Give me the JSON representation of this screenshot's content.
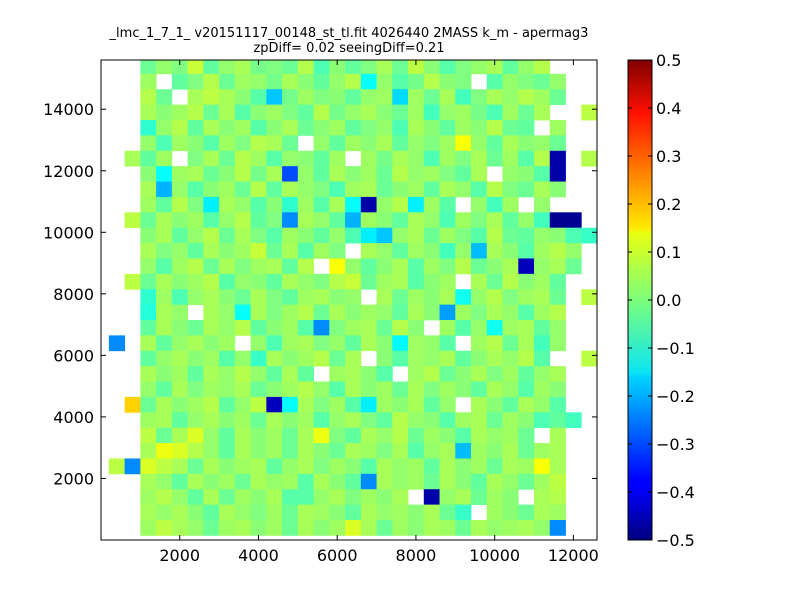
{
  "chart_data": {
    "type": "heatmap",
    "title": "_lmc_1_7_1_ v20151117_00148_st_tl.fit 4026440 2MASS k_m - apermag3",
    "subtitle": "zpDiff= 0.02 seeingDiff=0.21",
    "xlabel": "",
    "ylabel": "",
    "xlim": [
      0,
      12600
    ],
    "ylim": [
      0,
      15600
    ],
    "x_ticks": [
      2000,
      4000,
      6000,
      8000,
      10000,
      12000
    ],
    "y_ticks": [
      2000,
      4000,
      6000,
      8000,
      10000,
      12000,
      14000
    ],
    "x_tick_labels": [
      "2000",
      "4000",
      "6000",
      "8000",
      "10000",
      "12000"
    ],
    "y_tick_labels": [
      "2000",
      "4000",
      "6000",
      "8000",
      "10000",
      "12000",
      "14000"
    ],
    "colormap": "jet",
    "color_range": [
      -0.5,
      0.5
    ],
    "colorbar_ticks": [
      0.5,
      0.4,
      0.3,
      0.2,
      0.1,
      0.0,
      -0.1,
      -0.2,
      -0.3,
      -0.4,
      -0.5
    ],
    "colorbar_tick_labels": [
      "0.5",
      "0.4",
      "0.3",
      "0.2",
      "0.1",
      "0.0",
      "−0.1",
      "−0.2",
      "−0.3",
      "−0.4",
      "−0.5"
    ],
    "grid": false,
    "x_cell_centers": [
      400,
      800,
      1200,
      1600,
      2000,
      2400,
      2800,
      3200,
      3600,
      4000,
      4400,
      4800,
      5200,
      5600,
      6000,
      6400,
      6800,
      7200,
      7600,
      8000,
      8400,
      8800,
      9200,
      9600,
      10000,
      10400,
      10800,
      11200,
      11600,
      12000,
      12400
    ],
    "y_cell_centers": [
      15400,
      14900,
      14400,
      13900,
      13400,
      12900,
      12400,
      11900,
      11400,
      10900,
      10400,
      9900,
      9400,
      8900,
      8400,
      7900,
      7400,
      6900,
      6400,
      5900,
      5400,
      4900,
      4400,
      3900,
      3400,
      2900,
      2400,
      1900,
      1400,
      900,
      400
    ],
    "values": [
      [
        null,
        null,
        -0.02,
        0.02,
        0.0,
        0.07,
        -0.03,
        0.02,
        0.04,
        -0.01,
        0.0,
        -0.02,
        0.05,
        -0.05,
        0.01,
        -0.03,
        0.0,
        0.04,
        -0.02,
        0.06,
        0.01,
        -0.04,
        0.0,
        0.02,
        0.04,
        -0.03,
        0.02,
        0.05,
        null,
        null,
        null
      ],
      [
        null,
        null,
        0.03,
        null,
        -0.03,
        0.0,
        0.05,
        -0.02,
        0.03,
        0.02,
        -0.01,
        0.04,
        0.01,
        -0.03,
        0.02,
        0.05,
        -0.12,
        0.02,
        -0.04,
        -0.01,
        0.05,
        0.01,
        0.0,
        null,
        -0.04,
        0.02,
        0.0,
        -0.02,
        0.02,
        null,
        null
      ],
      [
        null,
        null,
        0.05,
        -0.02,
        null,
        0.04,
        0.06,
        0.04,
        0.01,
        -0.04,
        -0.18,
        -0.01,
        0.03,
        0.0,
        0.01,
        -0.03,
        0.02,
        0.03,
        -0.16,
        0.03,
        -0.02,
        0.04,
        -0.06,
        0.0,
        0.04,
        0.02,
        0.05,
        0.03,
        -0.02,
        null,
        null
      ],
      [
        null,
        null,
        0.04,
        0.01,
        0.03,
        0.05,
        -0.02,
        0.04,
        -0.04,
        0.01,
        0.03,
        0.0,
        -0.03,
        0.05,
        -0.01,
        0.02,
        0.04,
        0.01,
        -0.02,
        0.03,
        -0.06,
        0.02,
        0.03,
        -0.01,
        -0.05,
        0.03,
        -0.02,
        0.04,
        null,
        null,
        0.06
      ],
      [
        null,
        null,
        -0.08,
        0.02,
        0.05,
        -0.03,
        0.04,
        0.01,
        0.03,
        -0.04,
        0.01,
        0.04,
        -0.02,
        0.01,
        0.03,
        -0.03,
        0.0,
        0.02,
        -0.05,
        0.04,
        0.01,
        -0.03,
        0.03,
        0.01,
        0.05,
        -0.02,
        -0.03,
        null,
        0.03,
        null,
        null
      ],
      [
        null,
        null,
        0.02,
        -0.05,
        0.03,
        0.01,
        -0.04,
        0.03,
        0.0,
        0.05,
        0.04,
        -0.02,
        null,
        0.02,
        -0.03,
        0.03,
        0.01,
        0.04,
        -0.03,
        0.02,
        0.0,
        0.03,
        0.12,
        0.02,
        -0.03,
        0.04,
        0.01,
        0.02,
        -0.02,
        null,
        null
      ],
      [
        null,
        0.04,
        -0.03,
        0.03,
        null,
        0.0,
        0.04,
        -0.02,
        0.05,
        0.03,
        -0.04,
        0.02,
        0.01,
        -0.03,
        0.03,
        null,
        0.03,
        -0.01,
        0.04,
        0.02,
        -0.05,
        0.03,
        0.0,
        0.04,
        -0.02,
        0.03,
        -0.04,
        0.05,
        -0.46,
        null,
        0.05
      ],
      [
        null,
        null,
        0.01,
        -0.12,
        0.03,
        0.04,
        -0.02,
        0.01,
        0.05,
        -0.01,
        0.04,
        -0.3,
        0.02,
        -0.03,
        0.04,
        0.01,
        0.03,
        -0.02,
        0.05,
        0.02,
        0.03,
        0.0,
        -0.03,
        0.04,
        null,
        0.02,
        0.01,
        -0.04,
        -0.46,
        null,
        null
      ],
      [
        null,
        null,
        0.04,
        -0.2,
        0.02,
        -0.04,
        0.01,
        0.03,
        -0.02,
        0.05,
        -0.03,
        0.04,
        0.02,
        0.0,
        -0.05,
        0.03,
        0.04,
        -0.02,
        0.01,
        0.03,
        -0.03,
        0.04,
        0.02,
        -0.04,
        0.05,
        0.0,
        -0.02,
        0.04,
        0.01,
        null,
        null
      ],
      [
        null,
        null,
        0.03,
        -0.03,
        0.05,
        0.0,
        -0.14,
        0.04,
        0.02,
        -0.04,
        0.01,
        -0.08,
        0.03,
        -0.04,
        0.04,
        -0.12,
        -0.46,
        0.02,
        0.05,
        -0.14,
        0.03,
        -0.04,
        null,
        0.02,
        -0.06,
        0.03,
        null,
        0.02,
        null,
        null,
        null
      ],
      [
        null,
        0.06,
        -0.02,
        0.04,
        0.01,
        0.03,
        -0.04,
        0.02,
        0.05,
        -0.03,
        0.0,
        -0.24,
        0.04,
        0.02,
        -0.03,
        -0.2,
        0.03,
        0.01,
        -0.03,
        0.04,
        0.02,
        -0.05,
        0.03,
        0.0,
        0.04,
        -0.03,
        0.02,
        -0.06,
        -0.48,
        -0.48,
        null
      ],
      [
        null,
        null,
        0.01,
        0.04,
        -0.03,
        0.02,
        0.05,
        -0.02,
        0.04,
        0.0,
        -0.04,
        0.03,
        0.01,
        -0.03,
        0.02,
        -0.05,
        -0.14,
        -0.18,
        0.02,
        0.04,
        -0.02,
        0.03,
        0.0,
        -0.04,
        0.05,
        -0.02,
        -0.03,
        0.02,
        0.01,
        -0.05,
        -0.07
      ],
      [
        null,
        null,
        0.04,
        0.0,
        0.02,
        -0.03,
        0.04,
        0.01,
        0.03,
        0.07,
        -0.02,
        0.04,
        -0.04,
        0.03,
        0.0,
        null,
        0.04,
        0.02,
        -0.03,
        0.03,
        0.01,
        -0.06,
        0.02,
        -0.19,
        0.04,
        0.01,
        -0.04,
        0.03,
        0.05,
        0.02,
        null
      ],
      [
        null,
        null,
        0.02,
        -0.04,
        0.03,
        0.05,
        -0.02,
        0.04,
        0.0,
        0.03,
        0.04,
        -0.03,
        0.05,
        null,
        0.12,
        0.02,
        -0.03,
        0.01,
        0.04,
        -0.04,
        0.03,
        0.0,
        0.05,
        -0.02,
        0.01,
        0.04,
        -0.44,
        0.02,
        0.04,
        -0.02,
        null
      ],
      [
        null,
        0.06,
        -0.02,
        0.04,
        0.01,
        0.03,
        0.05,
        -0.04,
        0.02,
        0.01,
        -0.03,
        0.04,
        0.02,
        0.0,
        0.05,
        0.07,
        -0.02,
        0.03,
        0.04,
        -0.04,
        0.01,
        0.03,
        null,
        0.04,
        -0.02,
        0.05,
        0.01,
        0.03,
        -0.03,
        null,
        null
      ],
      [
        null,
        null,
        -0.08,
        0.03,
        -0.05,
        0.02,
        0.04,
        0.01,
        -0.02,
        0.04,
        0.0,
        -0.03,
        0.03,
        0.04,
        0.01,
        0.02,
        null,
        0.04,
        -0.02,
        0.03,
        0.01,
        0.04,
        -0.11,
        0.02,
        0.05,
        0.0,
        0.03,
        0.04,
        -0.02,
        null,
        0.06
      ],
      [
        null,
        null,
        -0.09,
        0.04,
        0.02,
        null,
        0.04,
        0.02,
        -0.12,
        0.04,
        0.0,
        0.03,
        0.05,
        -0.02,
        0.04,
        0.01,
        0.03,
        0.02,
        -0.03,
        0.04,
        0.01,
        -0.22,
        0.03,
        0.0,
        0.04,
        0.02,
        -0.04,
        0.03,
        0.05,
        null,
        null
      ],
      [
        null,
        null,
        -0.03,
        0.04,
        0.01,
        -0.02,
        0.04,
        0.02,
        0.05,
        -0.03,
        0.01,
        0.03,
        -0.04,
        -0.24,
        0.0,
        0.03,
        0.04,
        -0.02,
        0.05,
        0.01,
        null,
        0.03,
        -0.04,
        0.02,
        -0.11,
        0.03,
        0.04,
        -0.03,
        0.02,
        null,
        null
      ],
      [
        -0.24,
        null,
        0.04,
        -0.03,
        0.02,
        0.04,
        0.01,
        0.03,
        null,
        0.02,
        -0.05,
        0.03,
        0.04,
        0.0,
        0.02,
        -0.03,
        0.04,
        0.01,
        -0.13,
        0.03,
        0.02,
        -0.04,
        null,
        0.03,
        0.05,
        -0.02,
        0.04,
        -0.06,
        0.02,
        null,
        null
      ],
      [
        null,
        null,
        -0.03,
        0.02,
        0.04,
        0.01,
        0.03,
        -0.04,
        0.02,
        -0.07,
        0.04,
        0.01,
        0.03,
        0.05,
        -0.02,
        0.04,
        null,
        0.01,
        -0.04,
        0.03,
        0.02,
        0.04,
        -0.03,
        0.01,
        0.04,
        0.02,
        0.05,
        -0.04,
        null,
        null,
        0.06
      ],
      [
        null,
        null,
        0.04,
        0.01,
        0.03,
        -0.03,
        0.04,
        0.02,
        0.05,
        0.02,
        -0.03,
        0.04,
        -0.03,
        null,
        0.03,
        0.04,
        0.01,
        -0.04,
        null,
        0.03,
        0.05,
        -0.02,
        0.01,
        0.04,
        0.0,
        0.03,
        -0.03,
        0.02,
        0.04,
        null,
        null
      ],
      [
        null,
        null,
        0.02,
        -0.03,
        0.04,
        0.0,
        0.03,
        0.02,
        0.04,
        -0.02,
        0.01,
        0.03,
        0.05,
        0.02,
        -0.04,
        0.04,
        0.01,
        0.03,
        -0.02,
        0.04,
        0.0,
        0.03,
        0.01,
        -0.03,
        0.04,
        0.02,
        -0.04,
        0.03,
        0.01,
        null,
        null
      ],
      [
        null,
        0.17,
        -0.02,
        0.04,
        0.01,
        0.03,
        0.05,
        -0.03,
        0.02,
        0.06,
        -0.44,
        -0.12,
        0.04,
        0.0,
        0.03,
        -0.04,
        -0.14,
        0.03,
        0.01,
        0.04,
        -0.03,
        0.02,
        null,
        0.04,
        0.01,
        -0.03,
        0.04,
        0.02,
        -0.04,
        null,
        null
      ],
      [
        null,
        null,
        0.03,
        0.04,
        -0.03,
        0.02,
        0.04,
        0.01,
        0.03,
        -0.02,
        0.04,
        0.01,
        0.03,
        -0.04,
        0.02,
        0.04,
        0.0,
        -0.03,
        0.05,
        0.02,
        0.01,
        -0.04,
        0.03,
        0.04,
        -0.02,
        0.03,
        0.01,
        -0.05,
        -0.03,
        -0.06,
        null
      ],
      [
        null,
        null,
        0.06,
        -0.02,
        0.04,
        0.09,
        0.02,
        -0.03,
        0.04,
        0.01,
        0.03,
        -0.02,
        0.04,
        0.11,
        0.0,
        -0.03,
        0.04,
        0.02,
        0.05,
        -0.02,
        0.03,
        0.01,
        -0.04,
        0.04,
        0.02,
        0.03,
        -0.02,
        null,
        0.04,
        null,
        null
      ],
      [
        null,
        null,
        0.04,
        0.11,
        0.09,
        0.05,
        0.02,
        -0.03,
        0.04,
        0.01,
        0.03,
        -0.02,
        0.04,
        0.01,
        -0.02,
        0.04,
        0.03,
        0.0,
        0.04,
        -0.04,
        0.02,
        0.04,
        -0.19,
        0.03,
        0.01,
        0.04,
        -0.02,
        0.03,
        0.04,
        null,
        null
      ],
      [
        0.06,
        -0.24,
        0.09,
        0.06,
        0.04,
        -0.02,
        0.04,
        0.01,
        0.03,
        0.04,
        -0.03,
        0.02,
        0.04,
        0.0,
        0.03,
        0.01,
        -0.04,
        0.04,
        0.02,
        0.03,
        -0.03,
        0.04,
        0.01,
        0.03,
        -0.02,
        0.04,
        0.03,
        0.12,
        0.04,
        null,
        null
      ],
      [
        null,
        null,
        0.04,
        0.02,
        -0.03,
        0.04,
        0.01,
        0.03,
        -0.02,
        0.04,
        0.02,
        0.03,
        -0.04,
        0.04,
        0.01,
        -0.03,
        -0.24,
        0.04,
        0.02,
        0.03,
        -0.02,
        0.04,
        0.01,
        -0.03,
        0.04,
        0.02,
        -0.02,
        0.03,
        0.06,
        null,
        null
      ],
      [
        null,
        null,
        0.03,
        0.05,
        0.02,
        -0.03,
        0.04,
        -0.02,
        0.03,
        0.01,
        0.04,
        -0.04,
        -0.04,
        0.02,
        0.04,
        0.0,
        0.03,
        0.01,
        0.04,
        null,
        -0.46,
        0.02,
        0.04,
        -0.02,
        0.03,
        0.01,
        null,
        0.04,
        0.05,
        null,
        null
      ],
      [
        null,
        null,
        0.04,
        0.02,
        0.04,
        0.01,
        -0.03,
        0.04,
        0.02,
        0.0,
        0.03,
        -0.02,
        0.04,
        0.03,
        0.01,
        -0.03,
        0.04,
        0.02,
        0.03,
        0.01,
        0.04,
        -0.02,
        -0.07,
        null,
        0.03,
        0.01,
        -0.02,
        0.04,
        0.03,
        null,
        null
      ],
      [
        null,
        null,
        0.03,
        0.06,
        0.04,
        0.02,
        -0.02,
        0.03,
        0.04,
        0.01,
        0.03,
        -0.02,
        0.04,
        0.01,
        0.03,
        0.09,
        0.04,
        -0.02,
        0.03,
        0.01,
        0.04,
        0.03,
        -0.02,
        0.04,
        0.02,
        0.03,
        0.04,
        0.02,
        -0.24,
        null,
        null
      ]
    ]
  }
}
